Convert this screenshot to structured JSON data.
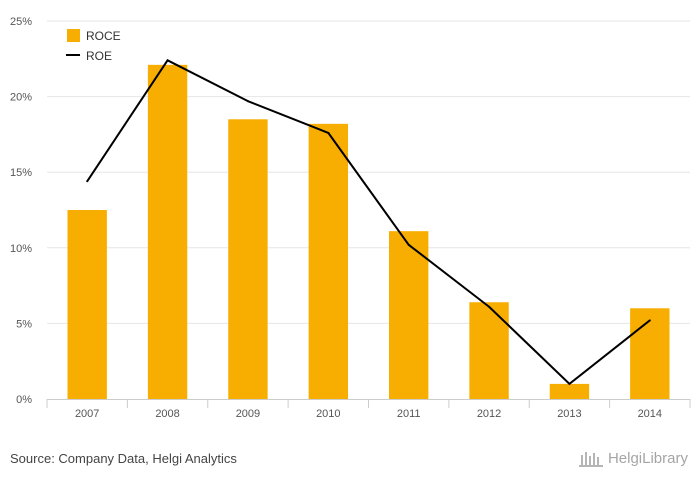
{
  "colors": {
    "roce": "#f7ae00",
    "roe": "#000000",
    "grid": "#e6e6e6",
    "axis": "#cccccc"
  },
  "chart_data": {
    "type": "bar",
    "categories": [
      "2007",
      "2008",
      "2009",
      "2010",
      "2011",
      "2012",
      "2013",
      "2014"
    ],
    "series": [
      {
        "name": "ROCE",
        "type": "bar",
        "values": [
          12.5,
          22.1,
          18.5,
          18.2,
          11.1,
          6.4,
          1.0,
          6.0
        ]
      },
      {
        "name": "ROE",
        "type": "line",
        "values": [
          14.4,
          22.4,
          19.7,
          17.6,
          10.2,
          6.1,
          1.0,
          5.2
        ]
      }
    ],
    "ylim": [
      0,
      25
    ],
    "yticks": [
      0,
      5,
      10,
      15,
      20,
      25
    ],
    "ytick_format": "%",
    "grid": true,
    "legend_position": "top-left"
  },
  "footer": {
    "source": "Source: Company Data, Helgi Analytics",
    "brand": "HelgiLibrary"
  }
}
